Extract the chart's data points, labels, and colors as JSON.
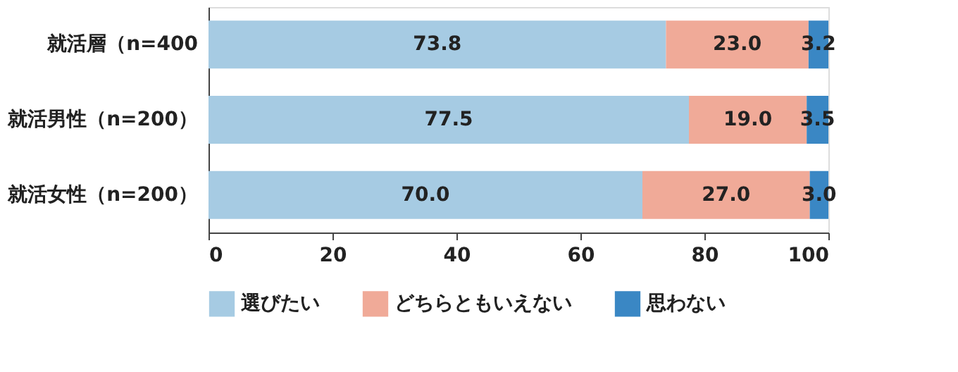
{
  "chart_data": {
    "type": "bar",
    "orientation": "horizontal",
    "stacked": true,
    "legend": "bottom",
    "grid": false,
    "categories": [
      "就活層（n=400",
      "就活男性（n=200）",
      "就活女性（n=200）"
    ],
    "series": [
      {
        "name": "選びたい",
        "color": "#a6cbe3",
        "values": [
          73.8,
          77.5,
          70.0
        ],
        "value_labels": [
          "73.8",
          "77.5",
          "70.0"
        ]
      },
      {
        "name": "どちらともいえない",
        "color": "#f0aa98",
        "values": [
          23.0,
          19.0,
          27.0
        ],
        "value_labels": [
          "23.0",
          "19.0",
          "27.0"
        ]
      },
      {
        "name": "思わない",
        "color": "#3a87c4",
        "values": [
          3.2,
          3.5,
          3.0
        ],
        "value_labels": [
          "3.2",
          "3.5",
          "3.0"
        ]
      }
    ],
    "xlim": [
      0,
      100
    ],
    "xticks": [
      0,
      20,
      40,
      60,
      80,
      100
    ]
  }
}
